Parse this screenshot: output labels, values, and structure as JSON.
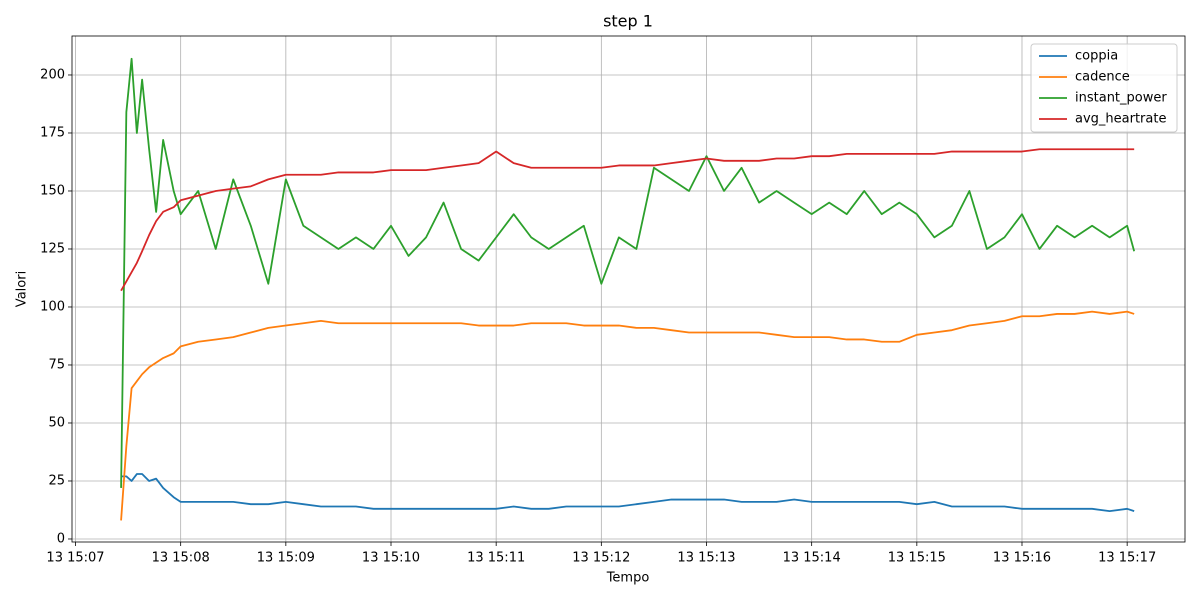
{
  "chart_data": {
    "type": "line",
    "title": "step 1",
    "xlabel": "Tempo",
    "ylabel": "Valori",
    "x": [
      "13 15:07:26",
      "13 15:07:29",
      "13 15:07:32",
      "13 15:07:35",
      "13 15:07:38",
      "13 15:07:42",
      "13 15:07:46",
      "13 15:07:50",
      "13 15:07:56",
      "13 15:08:00",
      "13 15:08:10",
      "13 15:08:20",
      "13 15:08:30",
      "13 15:08:40",
      "13 15:08:50",
      "13 15:09:00",
      "13 15:09:10",
      "13 15:09:20",
      "13 15:09:30",
      "13 15:09:40",
      "13 15:09:50",
      "13 15:10:00",
      "13 15:10:10",
      "13 15:10:20",
      "13 15:10:30",
      "13 15:10:40",
      "13 15:10:50",
      "13 15:11:00",
      "13 15:11:10",
      "13 15:11:20",
      "13 15:11:30",
      "13 15:11:40",
      "13 15:11:50",
      "13 15:12:00",
      "13 15:12:10",
      "13 15:12:20",
      "13 15:12:30",
      "13 15:12:40",
      "13 15:12:50",
      "13 15:13:00",
      "13 15:13:10",
      "13 15:13:20",
      "13 15:13:30",
      "13 15:13:40",
      "13 15:13:50",
      "13 15:14:00",
      "13 15:14:10",
      "13 15:14:20",
      "13 15:14:30",
      "13 15:14:40",
      "13 15:14:50",
      "13 15:15:00",
      "13 15:15:10",
      "13 15:15:20",
      "13 15:15:30",
      "13 15:15:40",
      "13 15:15:50",
      "13 15:16:00",
      "13 15:16:10",
      "13 15:16:20",
      "13 15:16:30",
      "13 15:16:40",
      "13 15:16:50",
      "13 15:17:00",
      "13 15:17:04"
    ],
    "series": [
      {
        "name": "coppia",
        "color": "#1f77b4",
        "values": [
          27,
          27,
          25,
          28,
          28,
          25,
          26,
          22,
          18,
          16,
          16,
          16,
          16,
          15,
          15,
          16,
          15,
          14,
          14,
          14,
          13,
          13,
          13,
          13,
          13,
          13,
          13,
          13,
          14,
          13,
          13,
          14,
          14,
          14,
          14,
          15,
          16,
          17,
          17,
          17,
          17,
          16,
          16,
          16,
          17,
          16,
          16,
          16,
          16,
          16,
          16,
          15,
          16,
          14,
          14,
          14,
          14,
          13,
          13,
          13,
          13,
          13,
          12,
          13,
          12
        ]
      },
      {
        "name": "cadence",
        "color": "#ff7f0e",
        "values": [
          8,
          40,
          65,
          68,
          71,
          74,
          76,
          78,
          80,
          83,
          85,
          86,
          87,
          89,
          91,
          92,
          93,
          94,
          93,
          93,
          93,
          93,
          93,
          93,
          93,
          93,
          92,
          92,
          92,
          93,
          93,
          93,
          92,
          92,
          92,
          91,
          91,
          90,
          89,
          89,
          89,
          89,
          89,
          88,
          87,
          87,
          87,
          86,
          86,
          85,
          85,
          88,
          89,
          90,
          92,
          93,
          94,
          96,
          96,
          97,
          97,
          98,
          97,
          98,
          97
        ]
      },
      {
        "name": "instant_power",
        "color": "#2ca02c",
        "values": [
          22,
          184,
          207,
          175,
          198,
          168,
          141,
          172,
          150,
          140,
          150,
          125,
          155,
          135,
          110,
          155,
          135,
          130,
          125,
          130,
          125,
          135,
          122,
          130,
          145,
          125,
          120,
          130,
          140,
          130,
          125,
          130,
          135,
          110,
          130,
          125,
          160,
          155,
          150,
          165,
          150,
          160,
          145,
          150,
          145,
          140,
          145,
          140,
          150,
          140,
          145,
          140,
          130,
          135,
          150,
          125,
          130,
          140,
          125,
          135,
          130,
          135,
          130,
          135,
          124
        ]
      },
      {
        "name": "avg_heartrate",
        "color": "#d62728",
        "values": [
          107,
          111,
          115,
          119,
          124,
          131,
          137,
          141,
          143,
          146,
          148,
          150,
          151,
          152,
          155,
          157,
          157,
          157,
          158,
          158,
          158,
          159,
          159,
          159,
          160,
          161,
          162,
          167,
          162,
          160,
          160,
          160,
          160,
          160,
          161,
          161,
          161,
          162,
          163,
          164,
          163,
          163,
          163,
          164,
          164,
          165,
          165,
          166,
          166,
          166,
          166,
          166,
          166,
          167,
          167,
          167,
          167,
          167,
          168,
          168,
          168,
          168,
          168,
          168,
          168
        ]
      }
    ],
    "xlim": [
      "13 15:06:58",
      "13 15:17:33"
    ],
    "xticks": [
      "13 15:07",
      "13 15:08",
      "13 15:09",
      "13 15:10",
      "13 15:11",
      "13 15:12",
      "13 15:13",
      "13 15:14",
      "13 15:15",
      "13 15:16",
      "13 15:17"
    ],
    "ylim": [
      -1.3,
      216.8
    ],
    "yticks": [
      0,
      25,
      50,
      75,
      100,
      125,
      150,
      175,
      200
    ],
    "grid": true,
    "legend": "upper right"
  }
}
